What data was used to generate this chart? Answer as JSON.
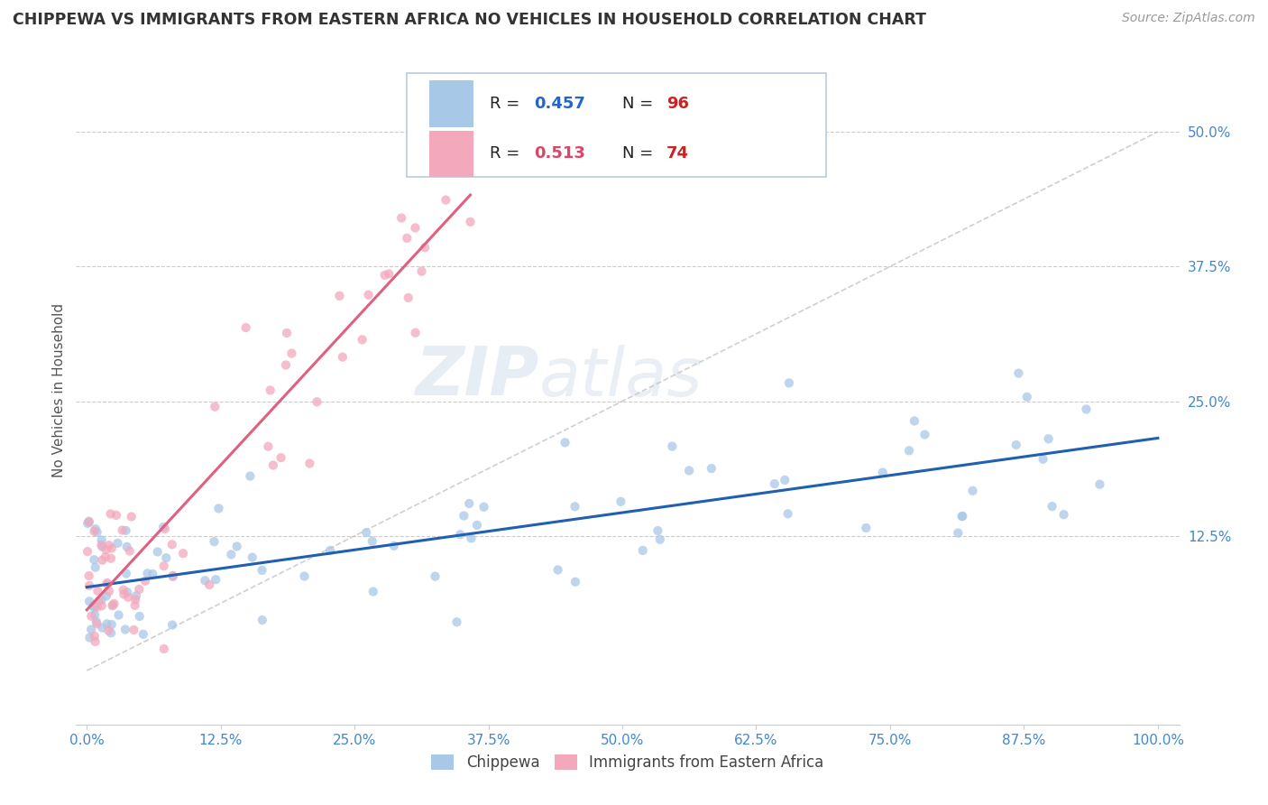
{
  "title": "CHIPPEWA VS IMMIGRANTS FROM EASTERN AFRICA NO VEHICLES IN HOUSEHOLD CORRELATION CHART",
  "source_text": "Source: ZipAtlas.com",
  "ylabel": "No Vehicles in Household",
  "legend_entries": [
    "Chippewa",
    "Immigrants from Eastern Africa"
  ],
  "r_chippewa": 0.457,
  "n_chippewa": 96,
  "r_eastern_africa": 0.513,
  "n_eastern_africa": 74,
  "color_chippewa": "#a8c8e8",
  "color_eastern_africa": "#f4a8bc",
  "line_color_chippewa": "#2060b0",
  "line_color_eastern_africa": "#e06080",
  "r_label_color_chippewa": "#2266cc",
  "r_label_color_eastern_africa": "#dd4466",
  "n_label_color": "#cc2222",
  "axis_tick_color": "#4488cc",
  "background_color": "#ffffff",
  "watermark_zip": "ZIP",
  "watermark_atlas": "atlas",
  "xlim": [
    -0.01,
    1.02
  ],
  "ylim": [
    -0.05,
    0.57
  ],
  "xtick_values": [
    0.0,
    0.125,
    0.25,
    0.375,
    0.5,
    0.625,
    0.75,
    0.875,
    1.0
  ],
  "xtick_labels": [
    "0.0%",
    "12.5%",
    "25.0%",
    "37.5%",
    "50.0%",
    "62.5%",
    "75.0%",
    "87.5%",
    "100.0%"
  ],
  "ytick_values": [
    0.125,
    0.25,
    0.375,
    0.5
  ],
  "ytick_labels": [
    "12.5%",
    "25.0%",
    "37.5%",
    "50.0%"
  ],
  "seed_chippewa": 42,
  "seed_eastern": 7
}
